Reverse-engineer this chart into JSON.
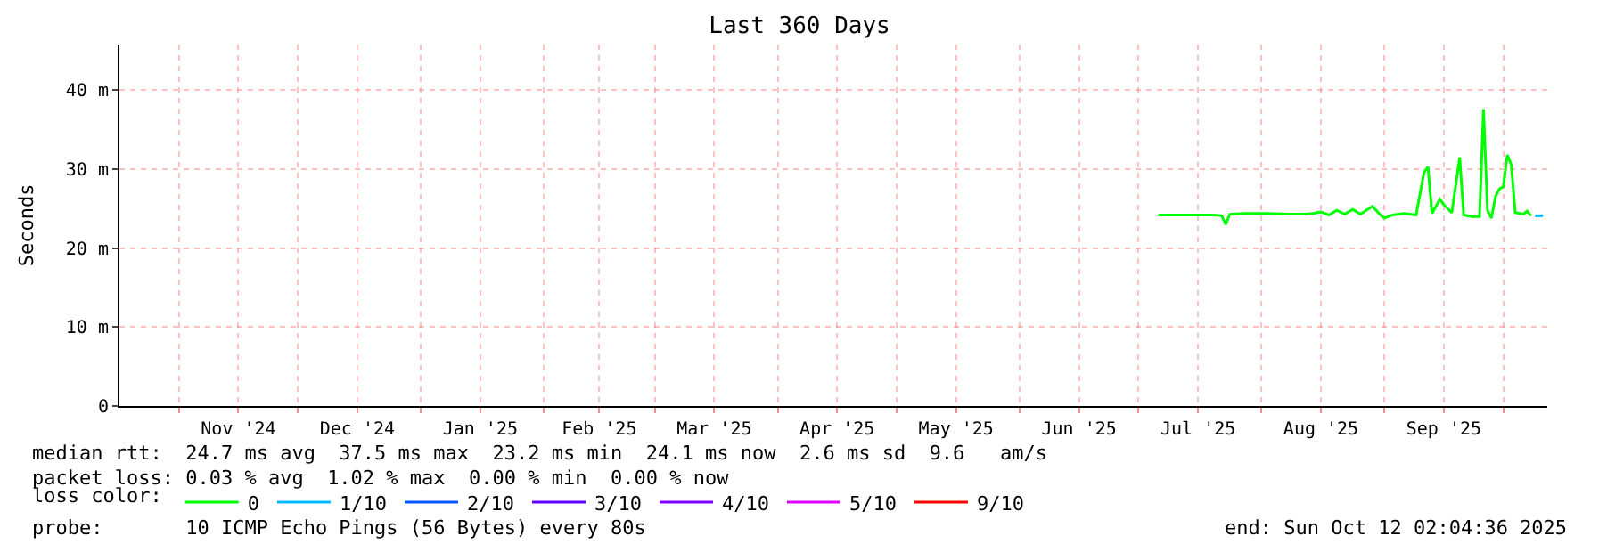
{
  "chart_data": {
    "type": "line",
    "title": "Last 360 Days",
    "ylabel": "Seconds",
    "x": [
      "2025-07-06",
      "2025-07-10",
      "2025-07-15",
      "2025-07-20",
      "2025-07-22",
      "2025-07-23",
      "2025-07-24",
      "2025-07-28",
      "2025-08-02",
      "2025-08-08",
      "2025-08-12",
      "2025-08-14",
      "2025-08-16",
      "2025-08-18",
      "2025-08-20",
      "2025-08-22",
      "2025-08-24",
      "2025-08-26",
      "2025-08-29",
      "2025-08-31",
      "2025-09-01",
      "2025-09-03",
      "2025-09-06",
      "2025-09-09",
      "2025-09-11",
      "2025-09-12",
      "2025-09-13",
      "2025-09-15",
      "2025-09-16",
      "2025-09-18",
      "2025-09-19",
      "2025-09-20",
      "2025-09-21",
      "2025-09-23",
      "2025-09-25",
      "2025-09-26",
      "2025-09-27",
      "2025-09-28",
      "2025-09-29",
      "2025-09-30",
      "2025-10-01",
      "2025-10-02",
      "2025-10-03",
      "2025-10-04",
      "2025-10-06",
      "2025-10-07",
      "2025-10-08"
    ],
    "series": [
      {
        "name": "0",
        "color": "#00ff00",
        "values": [
          24.2,
          24.2,
          24.2,
          24.2,
          24.1,
          23.0,
          24.3,
          24.4,
          24.4,
          24.3,
          24.3,
          24.4,
          24.6,
          24.2,
          24.8,
          24.3,
          24.9,
          24.3,
          25.3,
          24.2,
          23.8,
          24.2,
          24.4,
          24.2,
          29.6,
          30.3,
          24.4,
          26.2,
          25.5,
          24.5,
          28.0,
          31.5,
          24.2,
          24.0,
          24.0,
          37.6,
          24.8,
          23.8,
          26.5,
          27.5,
          27.8,
          31.8,
          30.6,
          24.5,
          24.3,
          24.7,
          24.1
        ]
      },
      {
        "name": "1/10",
        "color": "#00b8ff",
        "x": [
          "2025-10-09",
          "2025-10-11"
        ],
        "values": [
          24.1,
          24.1
        ]
      },
      {
        "name": "2/10",
        "color": "#0059ff",
        "values": [
          null,
          null,
          null,
          null,
          null,
          null,
          null,
          null,
          null,
          null,
          null,
          null,
          null,
          null,
          null,
          null,
          null,
          null,
          null,
          null,
          null,
          null,
          null,
          null,
          null,
          null,
          null,
          null,
          null,
          null,
          null,
          null,
          null,
          null,
          null,
          null,
          null,
          null,
          null,
          null,
          null,
          null,
          null,
          null,
          null,
          null,
          null
        ]
      },
      {
        "name": "3/10",
        "color": "#5e00ff",
        "values": [
          null,
          null,
          null,
          null,
          null,
          null,
          null,
          null,
          null,
          null,
          null,
          null,
          null,
          null,
          null,
          null,
          null,
          null,
          null,
          null,
          null,
          null,
          null,
          null,
          null,
          null,
          null,
          null,
          null,
          null,
          null,
          null,
          null,
          null,
          null,
          null,
          null,
          null,
          null,
          null,
          null,
          null,
          null,
          null,
          null,
          null,
          null
        ]
      },
      {
        "name": "4/10",
        "color": "#7e00ff",
        "values": [
          null,
          null,
          null,
          null,
          null,
          null,
          null,
          null,
          null,
          null,
          null,
          null,
          null,
          null,
          null,
          null,
          null,
          null,
          null,
          null,
          null,
          null,
          null,
          null,
          null,
          null,
          null,
          null,
          null,
          null,
          null,
          null,
          null,
          null,
          null,
          null,
          null,
          null,
          null,
          null,
          null,
          null,
          null,
          null,
          null,
          null,
          null
        ]
      },
      {
        "name": "5/10",
        "color": "#dd00ff",
        "values": [
          null,
          null,
          null,
          null,
          null,
          null,
          null,
          null,
          null,
          null,
          null,
          null,
          null,
          null,
          null,
          null,
          null,
          null,
          null,
          null,
          null,
          null,
          null,
          null,
          null,
          null,
          null,
          null,
          null,
          null,
          null,
          null,
          null,
          null,
          null,
          null,
          null,
          null,
          null,
          null,
          null,
          null,
          null,
          null,
          null,
          null,
          null
        ]
      },
      {
        "name": "9/10",
        "color": "#ff0000",
        "values": [
          null,
          null,
          null,
          null,
          null,
          null,
          null,
          null,
          null,
          null,
          null,
          null,
          null,
          null,
          null,
          null,
          null,
          null,
          null,
          null,
          null,
          null,
          null,
          null,
          null,
          null,
          null,
          null,
          null,
          null,
          null,
          null,
          null,
          null,
          null,
          null,
          null,
          null,
          null,
          null,
          null,
          null,
          null,
          null,
          null,
          null,
          null
        ]
      }
    ],
    "legend_title": "loss color:",
    "legend": "bottom",
    "grid": true,
    "xlim": [
      "2024-10-17",
      "2025-10-12T02:04"
    ],
    "xticks": [
      {
        "value": "2024-11-01",
        "label": null
      },
      {
        "value": "2024-11-16",
        "label": "Nov '24"
      },
      {
        "value": "2024-12-01",
        "label": null
      },
      {
        "value": "2024-12-16",
        "label": "Dec '24"
      },
      {
        "value": "2025-01-01",
        "label": null
      },
      {
        "value": "2025-01-16",
        "label": "Jan '25"
      },
      {
        "value": "2025-02-01",
        "label": null
      },
      {
        "value": "2025-02-15",
        "label": "Feb '25"
      },
      {
        "value": "2025-03-01",
        "label": null
      },
      {
        "value": "2025-03-16",
        "label": "Mar '25"
      },
      {
        "value": "2025-04-01",
        "label": null
      },
      {
        "value": "2025-04-16",
        "label": "Apr '25"
      },
      {
        "value": "2025-05-01",
        "label": null
      },
      {
        "value": "2025-05-16",
        "label": "May '25"
      },
      {
        "value": "2025-06-01",
        "label": null
      },
      {
        "value": "2025-06-16",
        "label": "Jun '25"
      },
      {
        "value": "2025-07-01",
        "label": null
      },
      {
        "value": "2025-07-16",
        "label": "Jul '25"
      },
      {
        "value": "2025-08-01",
        "label": null
      },
      {
        "value": "2025-08-16",
        "label": "Aug '25"
      },
      {
        "value": "2025-09-01",
        "label": null
      },
      {
        "value": "2025-09-16",
        "label": "Sep '25"
      },
      {
        "value": "2025-10-01",
        "label": null
      }
    ],
    "ylim": [
      0,
      45.8
    ],
    "yticks": [
      0,
      {
        "value": 10,
        "label": "10 m"
      },
      {
        "value": 20,
        "label": "20 m"
      },
      {
        "value": 30,
        "label": "30 m"
      },
      {
        "value": 40,
        "label": "40 m"
      }
    ],
    "annotations": [
      "median rtt:  24.7 ms avg  37.5 ms max  23.2 ms min  24.1 ms now  2.6 ms sd  9.6   am/s",
      "packet loss: 0.03 % avg  1.02 % max  0.00 % min  0.00 % now",
      "probe:       10 ICMP Echo Pings (56 Bytes) every 80s",
      "end: Sun Oct 12 02:04:36 2025"
    ]
  }
}
